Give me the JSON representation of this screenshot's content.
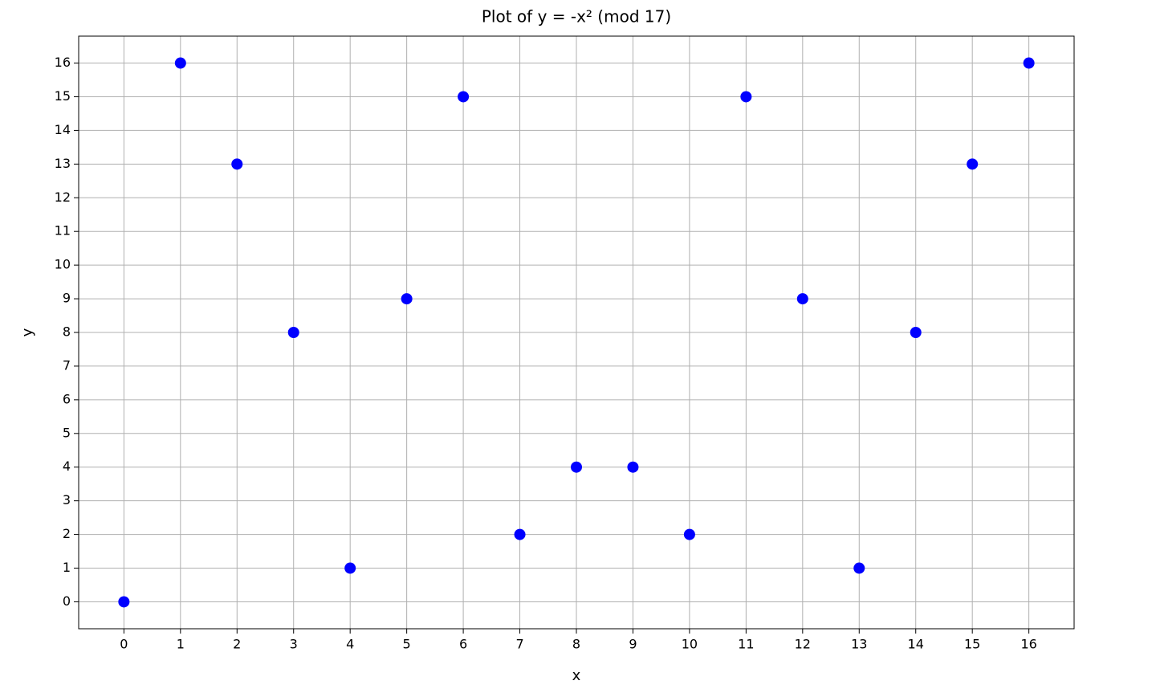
{
  "chart_data": {
    "type": "scatter",
    "title": "Plot of y = -x² (mod 17)",
    "xlabel": "x",
    "ylabel": "y",
    "x": [
      0,
      1,
      2,
      3,
      4,
      5,
      6,
      7,
      8,
      9,
      10,
      11,
      12,
      13,
      14,
      15,
      16
    ],
    "values": [
      0,
      16,
      13,
      8,
      1,
      9,
      15,
      2,
      4,
      4,
      2,
      15,
      9,
      1,
      8,
      13,
      16
    ],
    "color": "#0000ff",
    "xlim": [
      -0.8,
      16.8
    ],
    "ylim": [
      -0.8,
      16.8
    ],
    "xticks": [
      0,
      1,
      2,
      3,
      4,
      5,
      6,
      7,
      8,
      9,
      10,
      11,
      12,
      13,
      14,
      15,
      16
    ],
    "yticks": [
      0,
      1,
      2,
      3,
      4,
      5,
      6,
      7,
      8,
      9,
      10,
      11,
      12,
      13,
      14,
      15,
      16
    ],
    "grid": true
  }
}
